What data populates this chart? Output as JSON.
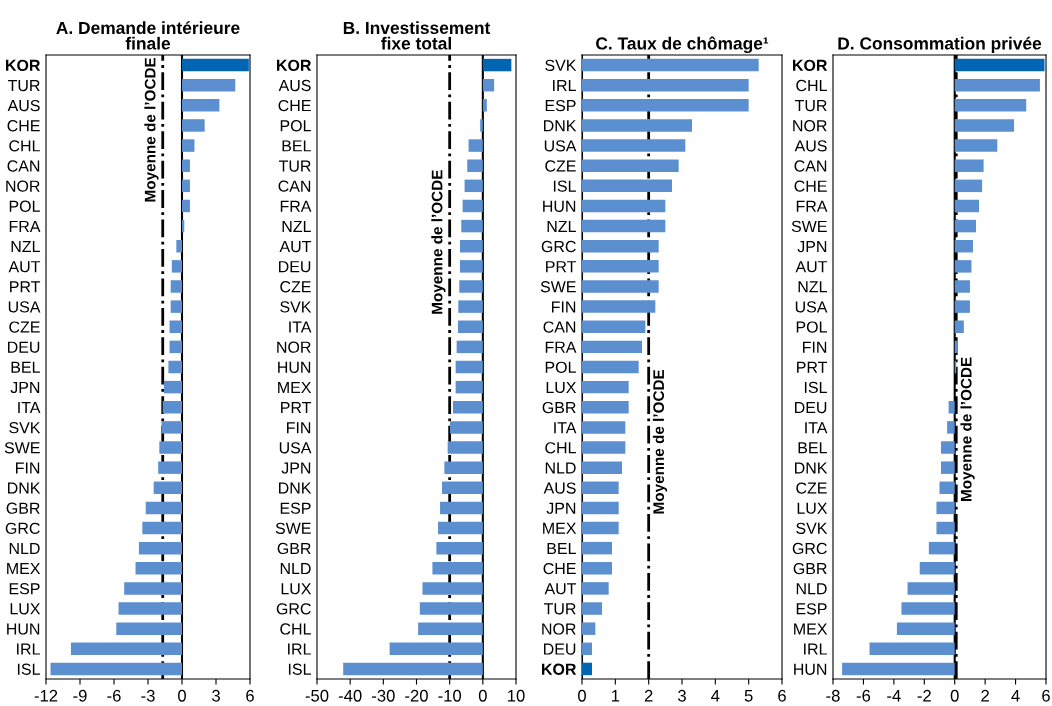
{
  "chart_data": [
    {
      "type": "bar",
      "orientation": "horizontal",
      "title": "A. Demande intérieure\nfinale",
      "categories": [
        "KOR",
        "TUR",
        "AUS",
        "CHE",
        "CHL",
        "CAN",
        "NOR",
        "POL",
        "FRA",
        "NZL",
        "AUT",
        "PRT",
        "USA",
        "CZE",
        "DEU",
        "BEL",
        "JPN",
        "ITA",
        "SVK",
        "SWE",
        "FIN",
        "DNK",
        "GBR",
        "GRC",
        "NLD",
        "MEX",
        "ESP",
        "LUX",
        "HUN",
        "IRL",
        "ISL"
      ],
      "values": [
        5.9,
        4.7,
        3.3,
        2.0,
        1.1,
        0.7,
        0.7,
        0.7,
        0.2,
        -0.5,
        -0.9,
        -1.0,
        -1.0,
        -1.1,
        -1.1,
        -1.2,
        -1.6,
        -1.7,
        -1.8,
        -2.0,
        -2.1,
        -2.5,
        -3.2,
        -3.5,
        -3.8,
        -4.1,
        -5.1,
        -5.6,
        -5.8,
        -9.8,
        -11.6
      ],
      "colors": [
        "#0066b3",
        "#5b8fcf",
        "#5b8fcf",
        "#5b8fcf",
        "#5b8fcf",
        "#5b8fcf",
        "#5b8fcf",
        "#5b8fcf",
        "#5b8fcf",
        "#5b8fcf",
        "#5b8fcf",
        "#5b8fcf",
        "#5b8fcf",
        "#5b8fcf",
        "#5b8fcf",
        "#5b8fcf",
        "#5b8fcf",
        "#5b8fcf",
        "#5b8fcf",
        "#5b8fcf",
        "#5b8fcf",
        "#5b8fcf",
        "#5b8fcf",
        "#5b8fcf",
        "#5b8fcf",
        "#5b8fcf",
        "#5b8fcf",
        "#5b8fcf",
        "#5b8fcf",
        "#5b8fcf",
        "#5b8fcf"
      ],
      "xlim": [
        -12,
        6
      ],
      "xticks": [
        -12,
        -9,
        -6,
        -3,
        0,
        3,
        6
      ],
      "ref_lines": [
        {
          "axis": "x",
          "value": -1.7,
          "label": "Moyenne de l’OCDE",
          "color": "#000000",
          "line_style": "dashdot"
        }
      ]
    },
    {
      "type": "bar",
      "orientation": "horizontal",
      "title": "B. Investissement\nfixe total",
      "categories": [
        "KOR",
        "AUS",
        "CHE",
        "POL",
        "BEL",
        "TUR",
        "CAN",
        "FRA",
        "NZL",
        "AUT",
        "DEU",
        "CZE",
        "SVK",
        "ITA",
        "NOR",
        "HUN",
        "MEX",
        "PRT",
        "FIN",
        "USA",
        "JPN",
        "DNK",
        "ESP",
        "SWE",
        "GBR",
        "NLD",
        "LUX",
        "GRC",
        "CHL",
        "IRL",
        "ISL"
      ],
      "values": [
        8.6,
        3.4,
        1.2,
        -0.8,
        -4.3,
        -4.7,
        -5.5,
        -6.1,
        -6.5,
        -6.9,
        -6.9,
        -7.1,
        -7.4,
        -7.5,
        -7.9,
        -8.2,
        -8.2,
        -9.0,
        -9.9,
        -10.6,
        -11.6,
        -12.3,
        -12.9,
        -13.5,
        -14.0,
        -15.2,
        -18.2,
        -19.0,
        -19.5,
        -28.1,
        -42.1
      ],
      "colors": [
        "#0066b3",
        "#5b8fcf",
        "#5b8fcf",
        "#5b8fcf",
        "#5b8fcf",
        "#5b8fcf",
        "#5b8fcf",
        "#5b8fcf",
        "#5b8fcf",
        "#5b8fcf",
        "#5b8fcf",
        "#5b8fcf",
        "#5b8fcf",
        "#5b8fcf",
        "#5b8fcf",
        "#5b8fcf",
        "#5b8fcf",
        "#5b8fcf",
        "#5b8fcf",
        "#5b8fcf",
        "#5b8fcf",
        "#5b8fcf",
        "#5b8fcf",
        "#5b8fcf",
        "#5b8fcf",
        "#5b8fcf",
        "#5b8fcf",
        "#5b8fcf",
        "#5b8fcf",
        "#5b8fcf",
        "#5b8fcf"
      ],
      "xlim": [
        -50,
        10
      ],
      "xticks": [
        -50,
        -40,
        -30,
        -20,
        -10,
        0,
        10
      ],
      "ref_lines": [
        {
          "axis": "x",
          "value": -10,
          "label": "Moyenne de l’OCDE",
          "color": "#000000",
          "line_style": "dashdot"
        }
      ]
    },
    {
      "type": "bar",
      "orientation": "horizontal",
      "title": "C. Taux de chômage¹",
      "categories": [
        "SVK",
        "IRL",
        "ESP",
        "DNK",
        "USA",
        "CZE",
        "ISL",
        "HUN",
        "NZL",
        "GRC",
        "PRT",
        "SWE",
        "FIN",
        "CAN",
        "FRA",
        "POL",
        "LUX",
        "GBR",
        "ITA",
        "CHL",
        "NLD",
        "AUS",
        "JPN",
        "MEX",
        "BEL",
        "CHE",
        "AUT",
        "TUR",
        "NOR",
        "DEU",
        "KOR"
      ],
      "values": [
        5.3,
        5.0,
        5.0,
        3.3,
        3.1,
        2.9,
        2.7,
        2.5,
        2.5,
        2.3,
        2.3,
        2.3,
        2.2,
        1.9,
        1.8,
        1.7,
        1.4,
        1.4,
        1.3,
        1.3,
        1.2,
        1.1,
        1.1,
        1.1,
        0.9,
        0.9,
        0.8,
        0.6,
        0.4,
        0.3,
        0.3
      ],
      "colors": [
        "#5b8fcf",
        "#5b8fcf",
        "#5b8fcf",
        "#5b8fcf",
        "#5b8fcf",
        "#5b8fcf",
        "#5b8fcf",
        "#5b8fcf",
        "#5b8fcf",
        "#5b8fcf",
        "#5b8fcf",
        "#5b8fcf",
        "#5b8fcf",
        "#5b8fcf",
        "#5b8fcf",
        "#5b8fcf",
        "#5b8fcf",
        "#5b8fcf",
        "#5b8fcf",
        "#5b8fcf",
        "#5b8fcf",
        "#5b8fcf",
        "#5b8fcf",
        "#5b8fcf",
        "#5b8fcf",
        "#5b8fcf",
        "#5b8fcf",
        "#5b8fcf",
        "#5b8fcf",
        "#5b8fcf",
        "#0066b3"
      ],
      "xlim": [
        0,
        6
      ],
      "xticks": [
        0,
        1,
        2,
        3,
        4,
        5,
        6
      ],
      "ref_lines": [
        {
          "axis": "x",
          "value": 2.0,
          "label": "Moyenne de l’OCDE",
          "color": "#000000",
          "line_style": "dashdot"
        }
      ]
    },
    {
      "type": "bar",
      "orientation": "horizontal",
      "title": "D. Consommation privée",
      "categories": [
        "KOR",
        "CHL",
        "TUR",
        "NOR",
        "AUS",
        "CAN",
        "CHE",
        "FRA",
        "SWE",
        "JPN",
        "AUT",
        "NZL",
        "USA",
        "POL",
        "FIN",
        "PRT",
        "ISL",
        "DEU",
        "ITA",
        "BEL",
        "DNK",
        "CZE",
        "LUX",
        "SVK",
        "GRC",
        "GBR",
        "NLD",
        "ESP",
        "MEX",
        "IRL",
        "HUN"
      ],
      "values": [
        5.9,
        5.6,
        4.7,
        3.9,
        2.8,
        1.9,
        1.8,
        1.6,
        1.4,
        1.2,
        1.1,
        1.0,
        1.0,
        0.6,
        0.2,
        0.1,
        0.0,
        -0.4,
        -0.5,
        -0.9,
        -0.9,
        -1.0,
        -1.2,
        -1.2,
        -1.7,
        -2.3,
        -3.1,
        -3.5,
        -3.8,
        -5.6,
        -7.4
      ],
      "colors": [
        "#0066b3",
        "#5b8fcf",
        "#5b8fcf",
        "#5b8fcf",
        "#5b8fcf",
        "#5b8fcf",
        "#5b8fcf",
        "#5b8fcf",
        "#5b8fcf",
        "#5b8fcf",
        "#5b8fcf",
        "#5b8fcf",
        "#5b8fcf",
        "#5b8fcf",
        "#5b8fcf",
        "#5b8fcf",
        "#5b8fcf",
        "#5b8fcf",
        "#5b8fcf",
        "#5b8fcf",
        "#5b8fcf",
        "#5b8fcf",
        "#5b8fcf",
        "#5b8fcf",
        "#5b8fcf",
        "#5b8fcf",
        "#5b8fcf",
        "#5b8fcf",
        "#5b8fcf",
        "#5b8fcf",
        "#5b8fcf"
      ],
      "xlim": [
        -8,
        6
      ],
      "xticks": [
        -8,
        -6,
        -4,
        -2,
        0,
        2,
        4,
        6
      ],
      "ref_lines": [
        {
          "axis": "x",
          "value": 0.1,
          "label": "Moyenne de l’OCDE",
          "color": "#000000",
          "line_style": "dashdot"
        }
      ]
    }
  ]
}
